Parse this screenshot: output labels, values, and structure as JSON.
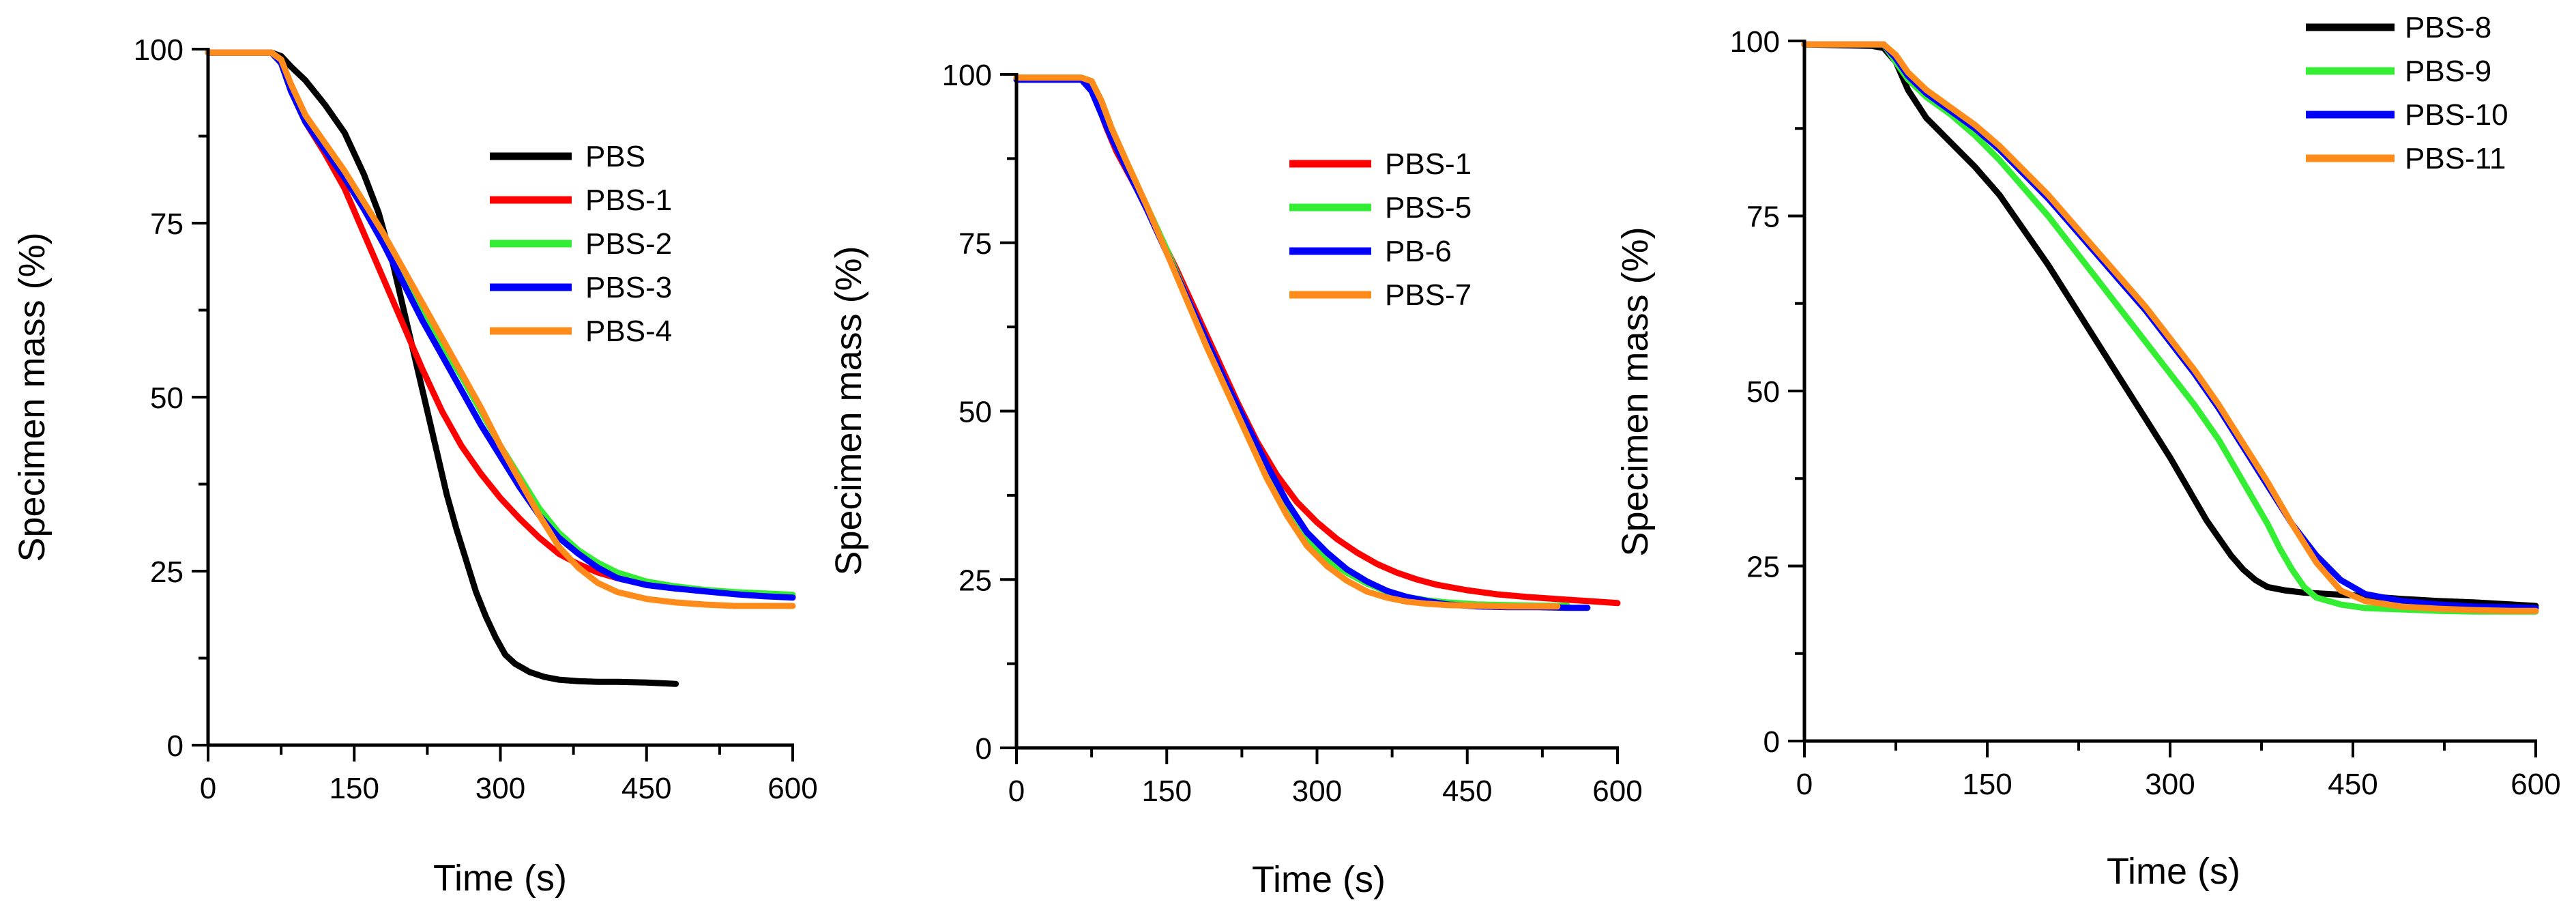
{
  "chart_data": [
    {
      "type": "line",
      "xlabel": "Time (s)",
      "ylabel": "Specimen mass (%)",
      "xlim": [
        0,
        600
      ],
      "ylim": [
        0,
        100
      ],
      "xticks": [
        0,
        150,
        300,
        450,
        600
      ],
      "yticks": [
        0,
        25,
        50,
        75,
        100
      ],
      "grid": false,
      "legend_position": "top-right",
      "series": [
        {
          "name": "PBS",
          "color": "#000000",
          "x": [
            0,
            65,
            75,
            85,
            100,
            120,
            140,
            160,
            175,
            190,
            205,
            215,
            225,
            235,
            245,
            255,
            265,
            275,
            285,
            295,
            305,
            315,
            330,
            345,
            360,
            380,
            400,
            420,
            450,
            480
          ],
          "y": [
            99.5,
            99.5,
            99,
            97.5,
            95.5,
            92,
            88,
            82,
            76.5,
            69,
            60,
            54,
            48,
            42,
            36,
            31,
            26.5,
            22,
            18.5,
            15.5,
            13,
            11.7,
            10.5,
            9.8,
            9.4,
            9.2,
            9.1,
            9.1,
            9,
            8.8
          ]
        },
        {
          "name": "PBS-1",
          "color": "#ff0000",
          "x": [
            0,
            65,
            75,
            85,
            100,
            120,
            140,
            160,
            180,
            200,
            220,
            240,
            260,
            280,
            300,
            320,
            340,
            360,
            380,
            400,
            420,
            450,
            480,
            510,
            540,
            570,
            600
          ],
          "y": [
            99.5,
            99.5,
            98,
            94,
            89.5,
            85,
            80,
            73.5,
            67,
            60.5,
            54,
            48,
            43,
            39,
            35.5,
            32.5,
            29.8,
            27.5,
            26,
            24.8,
            24,
            23.2,
            22.6,
            22.2,
            21.9,
            21.6,
            21.4
          ]
        },
        {
          "name": "PBS-2",
          "color": "#33ee33",
          "x": [
            0,
            65,
            75,
            85,
            100,
            120,
            140,
            160,
            180,
            200,
            220,
            240,
            260,
            280,
            300,
            320,
            340,
            360,
            380,
            400,
            420,
            450,
            480,
            510,
            540,
            570,
            600
          ],
          "y": [
            99.5,
            99.5,
            98,
            94,
            90,
            86,
            82,
            77.5,
            72.5,
            67.5,
            62.5,
            57.5,
            53,
            48,
            43,
            38.5,
            34,
            30.5,
            28,
            26.2,
            24.8,
            23.5,
            22.8,
            22.3,
            22,
            21.8,
            21.6
          ]
        },
        {
          "name": "PBS-3",
          "color": "#0000ff",
          "x": [
            0,
            65,
            75,
            85,
            100,
            120,
            140,
            160,
            180,
            200,
            220,
            240,
            260,
            280,
            300,
            320,
            340,
            360,
            380,
            400,
            420,
            450,
            480,
            510,
            540,
            570,
            600
          ],
          "y": [
            99.5,
            99.5,
            98,
            94,
            89.5,
            85.5,
            81.5,
            77,
            72,
            66.5,
            61,
            56,
            51,
            46,
            41.5,
            37,
            33,
            29.8,
            27.5,
            25.5,
            24,
            23,
            22.5,
            22.1,
            21.7,
            21.4,
            21.2
          ]
        },
        {
          "name": "PBS-4",
          "color": "#ff8c1a",
          "x": [
            0,
            65,
            75,
            85,
            100,
            120,
            140,
            160,
            180,
            200,
            220,
            240,
            260,
            280,
            300,
            320,
            340,
            360,
            380,
            400,
            420,
            450,
            480,
            510,
            540,
            570,
            600
          ],
          "y": [
            99.5,
            99.5,
            98.5,
            95,
            90.5,
            86.5,
            82.5,
            78,
            73.5,
            68.5,
            63.5,
            58.5,
            53.5,
            48.5,
            43,
            38,
            33,
            28.5,
            25.5,
            23.3,
            22,
            21,
            20.5,
            20.2,
            20,
            20,
            20
          ]
        }
      ],
      "legend": [
        "PBS",
        "PBS-1",
        "PBS-2",
        "PBS-3",
        "PBS-4"
      ]
    },
    {
      "type": "line",
      "xlabel": "Time (s)",
      "ylabel": "Specimen mass (%)",
      "xlim": [
        0,
        600
      ],
      "ylim": [
        0,
        100
      ],
      "xticks": [
        0,
        150,
        300,
        450,
        600
      ],
      "yticks": [
        0,
        25,
        50,
        75,
        100
      ],
      "grid": false,
      "legend_position": "top-right",
      "series": [
        {
          "name": "PBS-1",
          "color": "#ff0000",
          "x": [
            0,
            65,
            72,
            80,
            90,
            100,
            120,
            140,
            160,
            180,
            200,
            220,
            240,
            260,
            280,
            300,
            320,
            340,
            360,
            380,
            400,
            420,
            450,
            480,
            510,
            540,
            570,
            600
          ],
          "y": [
            99.5,
            99.5,
            99,
            96,
            92,
            88.5,
            83,
            77,
            71,
            64.5,
            58,
            51.5,
            45.5,
            40.5,
            36.5,
            33.5,
            31,
            29,
            27.3,
            26,
            25,
            24.2,
            23.4,
            22.8,
            22.4,
            22.1,
            21.8,
            21.5
          ]
        },
        {
          "name": "PBS-5",
          "color": "#33ee33",
          "x": [
            0,
            65,
            75,
            85,
            95,
            110,
            130,
            150,
            170,
            190,
            210,
            230,
            250,
            270,
            290,
            310,
            330,
            350,
            370,
            390,
            410,
            430,
            460,
            490,
            520,
            550
          ],
          "y": [
            99.5,
            99.5,
            99,
            96,
            92,
            87,
            80.5,
            74,
            67,
            60.5,
            54,
            47.5,
            41,
            35.5,
            31,
            28,
            26,
            24.4,
            23.2,
            22.4,
            21.9,
            21.6,
            21.3,
            21.2,
            21.1,
            21.1
          ]
        },
        {
          "name": "PB-6",
          "color": "#0000ff",
          "x": [
            0,
            65,
            75,
            85,
            95,
            110,
            130,
            150,
            170,
            190,
            210,
            230,
            250,
            270,
            290,
            310,
            330,
            350,
            370,
            390,
            410,
            430,
            460,
            490,
            520,
            550,
            570
          ],
          "y": [
            99.2,
            99.2,
            97.5,
            94,
            90.5,
            86,
            80,
            73.5,
            67,
            60.5,
            54,
            48,
            42,
            36.5,
            32,
            29,
            26.5,
            24.7,
            23.3,
            22.4,
            21.8,
            21.3,
            21,
            20.9,
            20.9,
            20.8,
            20.8
          ]
        },
        {
          "name": "PBS-7",
          "color": "#ff8c1a",
          "x": [
            0,
            65,
            75,
            85,
            95,
            110,
            130,
            150,
            170,
            190,
            210,
            230,
            250,
            270,
            290,
            310,
            330,
            350,
            370,
            390,
            410,
            430,
            460,
            490,
            520,
            540
          ],
          "y": [
            99.5,
            99.5,
            99,
            96,
            92,
            87,
            80.5,
            73.5,
            66.5,
            59.5,
            53,
            46.5,
            40,
            34.5,
            30,
            27,
            24.8,
            23.2,
            22.3,
            21.7,
            21.4,
            21.2,
            21.1,
            21,
            21,
            21
          ]
        }
      ],
      "legend": [
        "PBS-1",
        "PBS-5",
        "PB-6",
        "PBS-7"
      ]
    },
    {
      "type": "line",
      "xlabel": "Time (s)",
      "ylabel": "Specimen mass (%)",
      "xlim": [
        0,
        600
      ],
      "ylim": [
        0,
        100
      ],
      "xticks": [
        0,
        150,
        300,
        450,
        600
      ],
      "yticks": [
        0,
        25,
        50,
        75,
        100
      ],
      "grid": false,
      "legend_position": "top-right",
      "series": [
        {
          "name": "PBS-8",
          "color": "#000000",
          "x": [
            0,
            55,
            65,
            75,
            85,
            100,
            120,
            140,
            160,
            180,
            200,
            220,
            240,
            260,
            280,
            300,
            310,
            320,
            330,
            340,
            350,
            360,
            370,
            380,
            395,
            410,
            430,
            460,
            490,
            520,
            550,
            580,
            600
          ],
          "y": [
            99.5,
            99.3,
            99,
            97,
            93,
            89,
            85.5,
            82,
            78,
            73,
            68,
            62.5,
            57,
            51.5,
            46,
            40.5,
            37.5,
            34.5,
            31.5,
            29,
            26.5,
            24.5,
            23,
            22,
            21.5,
            21.2,
            21,
            20.7,
            20.3,
            20,
            19.8,
            19.5,
            19.3
          ]
        },
        {
          "name": "PBS-9",
          "color": "#33ee33",
          "x": [
            0,
            65,
            75,
            85,
            100,
            120,
            140,
            160,
            180,
            200,
            220,
            240,
            260,
            280,
            300,
            320,
            340,
            360,
            370,
            380,
            390,
            400,
            410,
            420,
            440,
            460,
            490,
            520,
            550,
            580,
            600
          ],
          "y": [
            99.5,
            99.5,
            97,
            94.5,
            92,
            89.5,
            86.5,
            83,
            79,
            75,
            70.5,
            66,
            61.5,
            57,
            52.5,
            48,
            43,
            37,
            34,
            31,
            27.5,
            24.5,
            22,
            20.5,
            19.5,
            19,
            18.8,
            18.6,
            18.5,
            18.5,
            18.5
          ]
        },
        {
          "name": "PBS-10",
          "color": "#0000ff",
          "x": [
            0,
            65,
            75,
            85,
            100,
            120,
            140,
            160,
            180,
            200,
            220,
            240,
            260,
            280,
            300,
            320,
            340,
            360,
            380,
            400,
            420,
            440,
            460,
            490,
            520,
            550,
            580,
            600
          ],
          "y": [
            99.5,
            99.5,
            97.5,
            95,
            92.5,
            90,
            87.5,
            84.5,
            81,
            77.5,
            73.5,
            69.5,
            65.5,
            61.5,
            57,
            52.5,
            47.5,
            42,
            36.5,
            31,
            26.5,
            23,
            21,
            20,
            19.5,
            19.2,
            19.1,
            19
          ]
        },
        {
          "name": "PBS-11",
          "color": "#ff8c1a",
          "x": [
            0,
            65,
            75,
            85,
            100,
            120,
            140,
            160,
            180,
            200,
            220,
            240,
            260,
            280,
            300,
            320,
            340,
            360,
            380,
            400,
            420,
            440,
            460,
            490,
            520,
            550,
            580,
            600
          ],
          "y": [
            99.5,
            99.5,
            98,
            95.5,
            93,
            90.5,
            88,
            85,
            81.5,
            78,
            74,
            70,
            66,
            62,
            57.5,
            53,
            48,
            42.5,
            37,
            31,
            25.5,
            21.5,
            20,
            19.2,
            18.9,
            18.7,
            18.6,
            18.6
          ]
        }
      ],
      "legend": [
        "PBS-8",
        "PBS-9",
        "PBS-10",
        "PBS-11"
      ]
    }
  ]
}
